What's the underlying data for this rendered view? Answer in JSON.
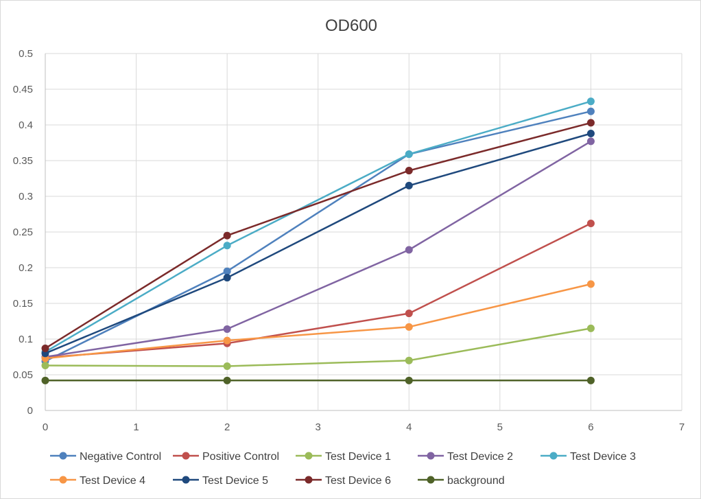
{
  "chart_data": {
    "type": "line",
    "title": "OD600",
    "xlabel": "",
    "ylabel": "",
    "xlim": [
      0,
      7
    ],
    "ylim": [
      0,
      0.5
    ],
    "x_ticks": [
      "0",
      "1",
      "2",
      "3",
      "4",
      "5",
      "6",
      "7"
    ],
    "y_ticks": [
      "0",
      "0.05",
      "0.1",
      "0.15",
      "0.2",
      "0.25",
      "0.3",
      "0.35",
      "0.4",
      "0.45",
      "0.5"
    ],
    "grid": true,
    "legend_position": "bottom",
    "x": [
      0,
      2,
      4,
      6
    ],
    "series": [
      {
        "name": "Negative Control",
        "color": "#4f81bd",
        "values": [
          0.069,
          0.195,
          0.359,
          0.419
        ]
      },
      {
        "name": "Positive Control",
        "color": "#c0504d",
        "values": [
          0.074,
          0.094,
          0.136,
          0.262
        ]
      },
      {
        "name": "Test Device 1",
        "color": "#9bbb59",
        "values": [
          0.063,
          0.062,
          0.07,
          0.115
        ]
      },
      {
        "name": "Test Device 2",
        "color": "#8064a2",
        "values": [
          0.075,
          0.114,
          0.225,
          0.377
        ]
      },
      {
        "name": "Test Device 3",
        "color": "#4bacc6",
        "values": [
          0.082,
          0.231,
          0.359,
          0.433
        ]
      },
      {
        "name": "Test Device 4",
        "color": "#f79646",
        "values": [
          0.073,
          0.098,
          0.117,
          0.177
        ]
      },
      {
        "name": "Test Device 5",
        "color": "#1f497d",
        "values": [
          0.08,
          0.186,
          0.315,
          0.388
        ]
      },
      {
        "name": "Test Device 6",
        "color": "#7b2a2a",
        "values": [
          0.087,
          0.245,
          0.336,
          0.403
        ]
      },
      {
        "name": "background",
        "color": "#4f6228",
        "values": [
          0.042,
          0.042,
          0.042,
          0.042
        ]
      }
    ]
  }
}
